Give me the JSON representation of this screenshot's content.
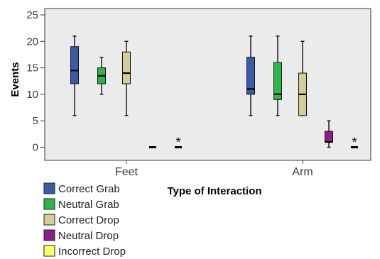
{
  "chart_data": {
    "type": "boxplot",
    "xlabel": "Type of Interaction",
    "ylabel": "Events",
    "ylim": [
      -2,
      26
    ],
    "yticks": [
      0,
      5,
      10,
      15,
      20,
      25
    ],
    "grid": false,
    "legend_position": "bottom-left",
    "categories": [
      "Feet",
      "Arm"
    ],
    "series": [
      {
        "name": "Correct Grab",
        "color": "#3b5ba8",
        "boxes": [
          {
            "category": "Feet",
            "min": 6,
            "q1": 12,
            "median": 14.5,
            "q3": 19,
            "max": 21
          },
          {
            "category": "Arm",
            "min": 6,
            "q1": 10,
            "median": 11,
            "q3": 17,
            "max": 21
          }
        ]
      },
      {
        "name": "Neutral Grab",
        "color": "#2bb84b",
        "boxes": [
          {
            "category": "Feet",
            "min": 10,
            "q1": 12,
            "median": 13.5,
            "q3": 15,
            "max": 17
          },
          {
            "category": "Arm",
            "min": 6,
            "q1": 9,
            "median": 10,
            "q3": 16,
            "max": 21
          }
        ]
      },
      {
        "name": "Correct Drop",
        "color": "#d6cc98",
        "boxes": [
          {
            "category": "Feet",
            "min": 6,
            "q1": 12,
            "median": 14,
            "q3": 18,
            "max": 20
          },
          {
            "category": "Arm",
            "min": 6,
            "q1": 6,
            "median": 10,
            "q3": 14,
            "max": 20
          }
        ]
      },
      {
        "name": "Neutral Drop",
        "color": "#8b1f87",
        "boxes": [
          {
            "category": "Feet",
            "min": 0,
            "q1": 0,
            "median": 0,
            "q3": 0,
            "max": 0
          },
          {
            "category": "Arm",
            "min": 0,
            "q1": 1,
            "median": 1,
            "q3": 3,
            "max": 5
          }
        ]
      },
      {
        "name": "Incorrect Drop",
        "color": "#ffff66",
        "boxes": [
          {
            "category": "Feet",
            "min": 0,
            "q1": 0,
            "median": 0,
            "q3": 0,
            "max": 0,
            "outlier_marker": "*"
          },
          {
            "category": "Arm",
            "min": 0,
            "q1": 0,
            "median": 0,
            "q3": 0,
            "max": 0,
            "outlier_marker": "*"
          }
        ]
      }
    ]
  }
}
